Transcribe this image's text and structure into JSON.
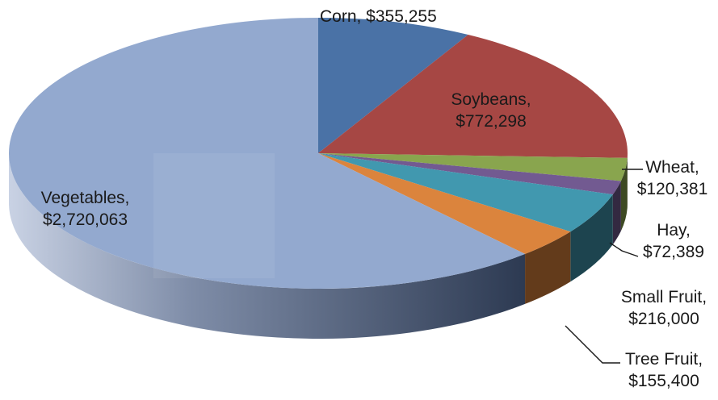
{
  "chart_data": {
    "type": "pie",
    "title": "",
    "slices": [
      {
        "label": "Corn",
        "value": 355255,
        "display": "Corn, $355,255",
        "color": "#4a72a6"
      },
      {
        "label": "Soybeans",
        "value": 772298,
        "display_name": "Soybeans,",
        "display_value": "$772,298",
        "color": "#a64744"
      },
      {
        "label": "Wheat",
        "value": 120381,
        "display_name": "Wheat,",
        "display_value": "$120,381",
        "color": "#89a54e"
      },
      {
        "label": "Hay",
        "value": 72389,
        "display_name": "Hay,",
        "display_value": "$72,389",
        "color": "#725a91"
      },
      {
        "label": "Small Fruit",
        "value": 216000,
        "display_name": "Small Fruit,",
        "display_value": "$216,000",
        "color": "#4198af"
      },
      {
        "label": "Tree Fruit",
        "value": 155400,
        "display_name": "Tree Fruit,",
        "display_value": "$155,400",
        "color": "#db843d"
      },
      {
        "label": "Vegetables",
        "value": 2720063,
        "display_name": "Vegetables,",
        "display_value": "$2,720,063",
        "color": "#93a9cf"
      }
    ],
    "style": "3d-pie"
  }
}
